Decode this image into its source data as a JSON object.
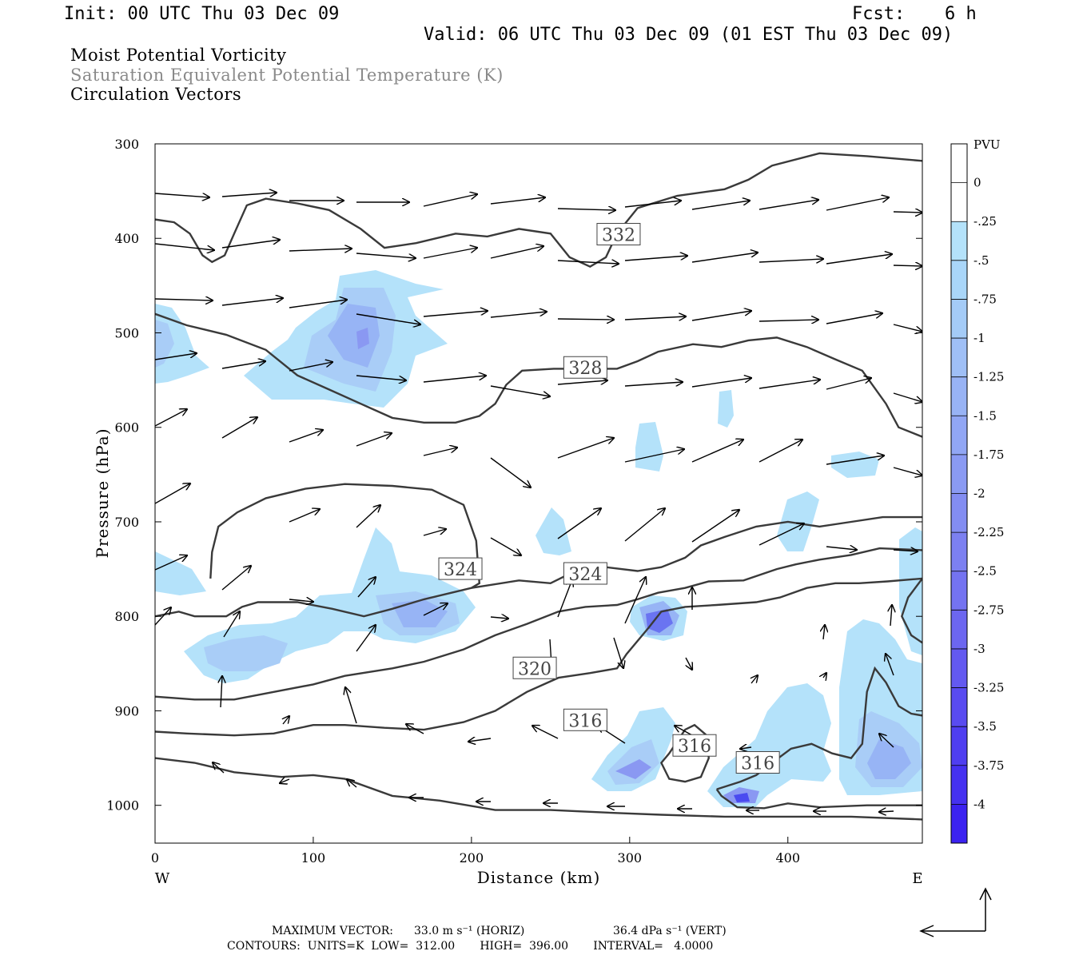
{
  "header": {
    "init": "Init: 00 UTC Thu 03 Dec 09",
    "fcst_label": "Fcst:",
    "fcst_value": "6 h",
    "valid": "Valid: 06 UTC Thu 03 Dec 09 (01 EST Thu 03 Dec 09)"
  },
  "fields": {
    "field1": "Moist Potential Vorticity",
    "field2": "Saturation Equivalent Potential Temperature (K)",
    "field3": "Circulation Vectors"
  },
  "colors": {
    "contour": "#3a3a3a",
    "vector": "#000000",
    "fill_light": "#b4e2fa",
    "fill_mid": "#a9cdf7",
    "fill_dark": "#7f89ee",
    "fill_deep": "#3333f0"
  },
  "chart_data": {
    "type": "contour",
    "xlabel": "Distance (km)",
    "ylabel": "Pressure (hPa)",
    "xlim": [
      0,
      485
    ],
    "ylim": [
      1040,
      300
    ],
    "x_ticks": [
      "0",
      "100",
      "200",
      "300",
      "400"
    ],
    "y_ticks": [
      "300",
      "400",
      "500",
      "600",
      "700",
      "800",
      "900",
      "1000"
    ],
    "x_end_labels": {
      "left": "W",
      "right": "E"
    },
    "colorbar": {
      "unit": "PVU",
      "levels": [
        "0",
        "-.25",
        "-.5",
        "-.75",
        "-1",
        "-1.25",
        "-1.5",
        "-1.75",
        "-2",
        "-2.25",
        "-2.5",
        "-2.75",
        "-3",
        "-3.25",
        "-3.5",
        "-3.75",
        "-4"
      ],
      "colors": [
        "#ffffff",
        "#ffffff",
        "#b4e2fa",
        "#a9d6f9",
        "#a4cbf7",
        "#9fbff6",
        "#98b3f5",
        "#91a6f4",
        "#8a9af3",
        "#838df2",
        "#7c80f1",
        "#7473f1",
        "#6c66f0",
        "#6359f0",
        "#594bf0",
        "#4f3ef0",
        "#4531f0",
        "#3b22f0"
      ]
    },
    "contour_labels": [
      {
        "text": "332",
        "x": 293,
        "p": 396
      },
      {
        "text": "328",
        "x": 272,
        "p": 537
      },
      {
        "text": "324",
        "x": 193,
        "p": 750
      },
      {
        "text": "324",
        "x": 272,
        "p": 755
      },
      {
        "text": "320",
        "x": 240,
        "p": 855
      },
      {
        "text": "316",
        "x": 272,
        "p": 910
      },
      {
        "text": "316",
        "x": 341,
        "p": 937
      },
      {
        "text": "316",
        "x": 381,
        "p": 955
      }
    ],
    "contours": [
      {
        "level": "332",
        "points": [
          [
            0,
            380
          ],
          [
            12,
            383
          ],
          [
            22,
            395
          ],
          [
            30,
            418
          ],
          [
            36,
            425
          ],
          [
            44,
            418
          ],
          [
            50,
            395
          ],
          [
            58,
            365
          ],
          [
            70,
            358
          ],
          [
            90,
            363
          ],
          [
            110,
            370
          ],
          [
            130,
            390
          ],
          [
            145,
            410
          ],
          [
            165,
            405
          ],
          [
            190,
            395
          ],
          [
            210,
            398
          ],
          [
            230,
            390
          ],
          [
            250,
            395
          ],
          [
            262,
            420
          ],
          [
            275,
            430
          ],
          [
            285,
            420
          ],
          [
            292,
            395
          ],
          [
            305,
            368
          ],
          [
            330,
            355
          ],
          [
            360,
            348
          ],
          [
            375,
            338
          ],
          [
            390,
            323
          ],
          [
            420,
            310
          ],
          [
            450,
            313
          ],
          [
            485,
            318
          ]
        ]
      },
      {
        "level": "328",
        "points": [
          [
            0,
            480
          ],
          [
            20,
            492
          ],
          [
            45,
            502
          ],
          [
            70,
            518
          ],
          [
            90,
            545
          ],
          [
            110,
            560
          ],
          [
            130,
            575
          ],
          [
            150,
            590
          ],
          [
            170,
            595
          ],
          [
            190,
            595
          ],
          [
            205,
            588
          ],
          [
            215,
            575
          ],
          [
            222,
            555
          ],
          [
            232,
            540
          ],
          [
            252,
            538
          ],
          [
            272,
            538
          ],
          [
            292,
            538
          ],
          [
            305,
            530
          ],
          [
            318,
            520
          ],
          [
            340,
            512
          ],
          [
            358,
            515
          ],
          [
            375,
            508
          ],
          [
            393,
            505
          ],
          [
            412,
            515
          ],
          [
            430,
            528
          ],
          [
            447,
            540
          ],
          [
            462,
            575
          ],
          [
            470,
            600
          ],
          [
            485,
            610
          ]
        ]
      },
      {
        "level": "324",
        "points": [
          [
            0,
            800
          ],
          [
            15,
            795
          ],
          [
            25,
            800
          ],
          [
            45,
            800
          ],
          [
            55,
            790
          ],
          [
            65,
            785
          ],
          [
            90,
            785
          ],
          [
            112,
            792
          ],
          [
            132,
            800
          ],
          [
            150,
            792
          ],
          [
            170,
            782
          ],
          [
            200,
            770
          ],
          [
            230,
            762
          ],
          [
            250,
            765
          ],
          [
            262,
            755
          ],
          [
            285,
            748
          ],
          [
            305,
            752
          ],
          [
            320,
            748
          ],
          [
            335,
            738
          ],
          [
            345,
            725
          ],
          [
            360,
            716
          ],
          [
            380,
            705
          ],
          [
            400,
            700
          ],
          [
            420,
            705
          ],
          [
            440,
            700
          ],
          [
            460,
            695
          ],
          [
            485,
            695
          ]
        ]
      },
      {
        "level": "324b",
        "points": [
          [
            35,
            760
          ],
          [
            36,
            732
          ],
          [
            40,
            705
          ],
          [
            52,
            690
          ],
          [
            70,
            675
          ],
          [
            95,
            665
          ],
          [
            120,
            660
          ],
          [
            150,
            662
          ],
          [
            175,
            666
          ],
          [
            195,
            682
          ],
          [
            203,
            720
          ],
          [
            205,
            765
          ],
          [
            200,
            770
          ]
        ]
      },
      {
        "level": "320",
        "points": [
          [
            0,
            885
          ],
          [
            25,
            888
          ],
          [
            50,
            888
          ],
          [
            75,
            880
          ],
          [
            100,
            872
          ],
          [
            120,
            863
          ],
          [
            150,
            855
          ],
          [
            170,
            848
          ],
          [
            195,
            835
          ],
          [
            215,
            820
          ],
          [
            235,
            808
          ],
          [
            255,
            795
          ],
          [
            272,
            790
          ],
          [
            292,
            788
          ],
          [
            305,
            782
          ],
          [
            318,
            775
          ],
          [
            335,
            770
          ],
          [
            350,
            763
          ],
          [
            372,
            762
          ],
          [
            393,
            750
          ],
          [
            405,
            745
          ],
          [
            420,
            740
          ],
          [
            440,
            735
          ],
          [
            458,
            728
          ],
          [
            485,
            730
          ]
        ]
      },
      {
        "level": "320b",
        "points": [
          [
            485,
            760
          ],
          [
            476,
            780
          ],
          [
            472,
            800
          ],
          [
            478,
            820
          ],
          [
            485,
            828
          ]
        ]
      },
      {
        "level": "316",
        "points": [
          [
            0,
            922
          ],
          [
            20,
            924
          ],
          [
            50,
            926
          ],
          [
            75,
            924
          ],
          [
            100,
            915
          ],
          [
            120,
            915
          ],
          [
            145,
            918
          ],
          [
            170,
            920
          ],
          [
            195,
            912
          ],
          [
            215,
            900
          ],
          [
            235,
            880
          ],
          [
            255,
            865
          ],
          [
            275,
            860
          ],
          [
            292,
            855
          ],
          [
            298,
            840
          ],
          [
            312,
            812
          ],
          [
            320,
            795
          ],
          [
            335,
            790
          ],
          [
            355,
            788
          ],
          [
            380,
            785
          ],
          [
            395,
            780
          ],
          [
            412,
            770
          ],
          [
            430,
            765
          ],
          [
            445,
            765
          ],
          [
            463,
            763
          ],
          [
            485,
            760
          ]
        ]
      },
      {
        "level": "316b",
        "points": [
          [
            325,
            945
          ],
          [
            335,
            920
          ],
          [
            341,
            915
          ],
          [
            348,
            925
          ],
          [
            350,
            950
          ],
          [
            345,
            970
          ],
          [
            335,
            975
          ],
          [
            325,
            972
          ],
          [
            320,
            955
          ],
          [
            325,
            945
          ]
        ]
      },
      {
        "level": "316c",
        "points": [
          [
            355,
            983
          ],
          [
            370,
            975
          ],
          [
            380,
            968
          ],
          [
            390,
            955
          ],
          [
            402,
            940
          ],
          [
            415,
            935
          ],
          [
            428,
            945
          ],
          [
            440,
            950
          ],
          [
            447,
            935
          ],
          [
            450,
            880
          ],
          [
            455,
            855
          ],
          [
            462,
            870
          ],
          [
            470,
            895
          ],
          [
            478,
            903
          ],
          [
            485,
            905
          ]
        ]
      },
      {
        "level": "316d",
        "points": [
          [
            355,
            983
          ],
          [
            358,
            990
          ],
          [
            368,
            1002
          ],
          [
            385,
            1003
          ],
          [
            400,
            998
          ],
          [
            420,
            1002
          ],
          [
            450,
            1000
          ],
          [
            485,
            1000
          ]
        ]
      },
      {
        "level": "312",
        "points": [
          [
            0,
            950
          ],
          [
            25,
            955
          ],
          [
            50,
            965
          ],
          [
            80,
            970
          ],
          [
            100,
            968
          ],
          [
            120,
            972
          ],
          [
            150,
            990
          ],
          [
            180,
            995
          ],
          [
            215,
            1005
          ],
          [
            250,
            1005
          ],
          [
            290,
            1008
          ],
          [
            320,
            1010
          ],
          [
            360,
            1012
          ],
          [
            400,
            1012
          ],
          [
            440,
            1012
          ],
          [
            485,
            1015
          ]
        ]
      }
    ]
  },
  "footer": {
    "max_vector_label": "MAXIMUM VECTOR:",
    "max_horiz": "33.0 m s⁻¹ (HORIZ)",
    "max_vert": "36.4 dPa s⁻¹ (VERT)",
    "contours_line": "CONTOURS:  UNITS=K  LOW=  312.00       HIGH=  396.00       INTERVAL=   4.0000"
  }
}
